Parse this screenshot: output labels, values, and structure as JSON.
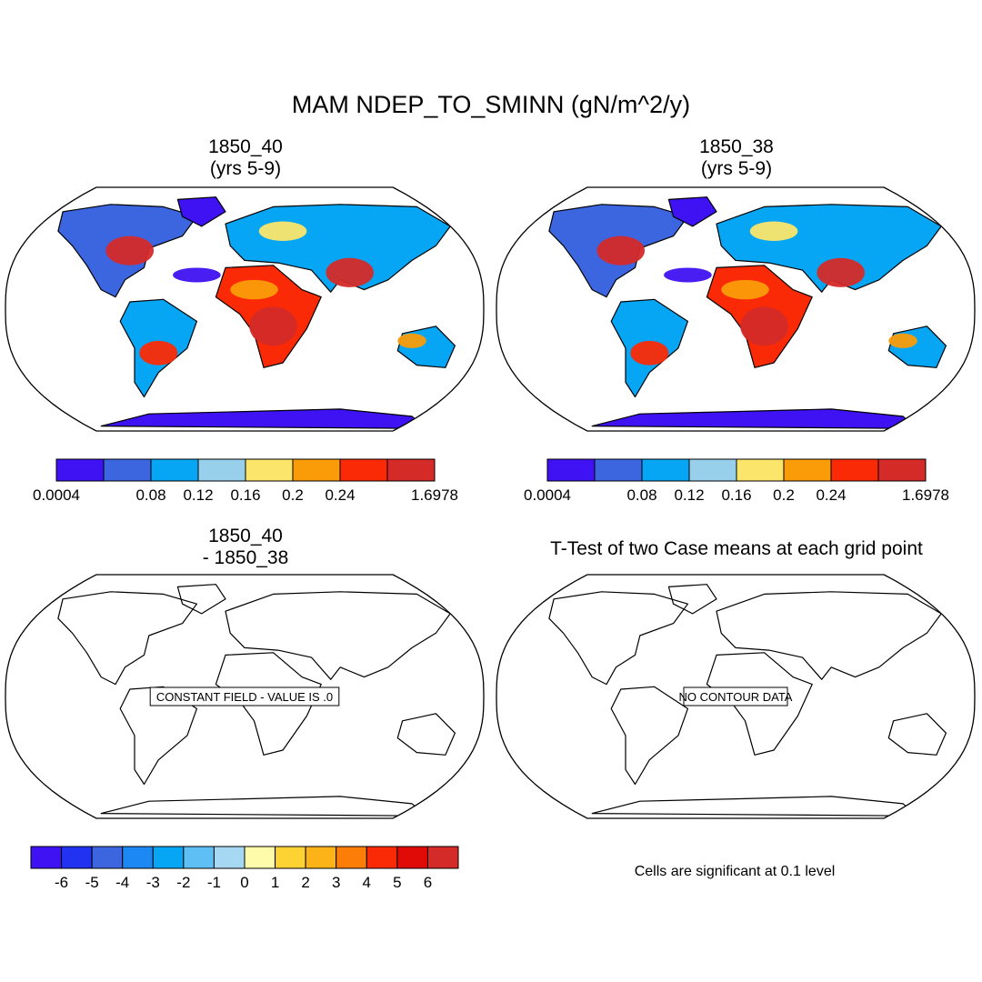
{
  "title": "MAM NDEP_TO_SMINN (gN/m^2/y)",
  "panels": [
    {
      "id": "p1",
      "title_line1": "1850_40",
      "title_line2": "(yrs 5-9)",
      "type": "field"
    },
    {
      "id": "p2",
      "title_line1": "1850_38",
      "title_line2": "(yrs 5-9)",
      "type": "field"
    },
    {
      "id": "p3",
      "title_line1": "1850_40",
      "title_line2": "- 1850_38",
      "type": "diff",
      "message": "CONSTANT FIELD - VALUE IS .0"
    },
    {
      "id": "p4",
      "title_line1": "T-Test of two Case means at each grid point",
      "title_line2": "",
      "type": "ttest",
      "message": "NO CONTOUR DATA"
    }
  ],
  "colorbar_top": {
    "colors": [
      "#3e12f2",
      "#3c66e0",
      "#06a6f4",
      "#98d0ec",
      "#fbe56a",
      "#fa9c08",
      "#fb2a06",
      "#d42a28"
    ],
    "labels": [
      "0.0004",
      "",
      "0.08",
      "0.12",
      "0.16",
      "0.2",
      "0.24",
      "",
      "1.6978"
    ]
  },
  "colorbar_diff": {
    "colors": [
      "#3e12f2",
      "#2132f1",
      "#3c66e0",
      "#1c88f3",
      "#06a6f4",
      "#5ebff4",
      "#a6d8f4",
      "#fefcaa",
      "#fcd332",
      "#fcb318",
      "#fc7e08",
      "#fb2a06",
      "#e00b06",
      "#d42a28"
    ],
    "labels": [
      "-6",
      "-5",
      "-4",
      "-3",
      "-2",
      "-1",
      "0",
      "1",
      "2",
      "3",
      "4",
      "5",
      "6"
    ]
  },
  "footnote": "Cells are significant at 0.1 level"
}
